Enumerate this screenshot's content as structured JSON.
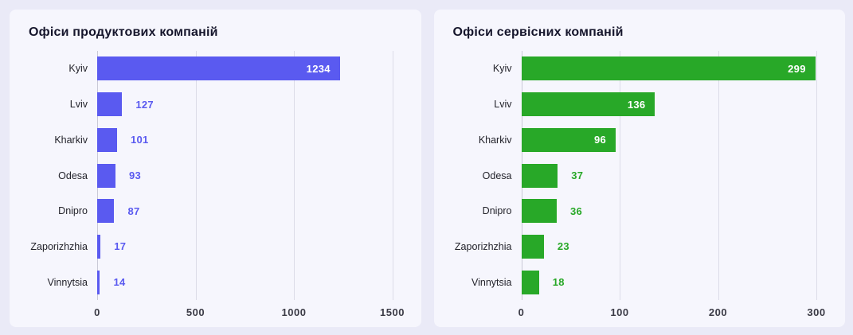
{
  "theme": {
    "page_bg": "#eaeaf7",
    "card_bg": "#f6f6fd",
    "grid_color": "#dcdce8",
    "axis_zero_color": "#c9c9d6",
    "title_color": "#15152b",
    "label_color": "#23232b",
    "tick_color": "#3b3b46"
  },
  "chart_data": [
    {
      "type": "bar",
      "orientation": "horizontal",
      "title": "Офіси продуктових компаній",
      "categories": [
        "Kyiv",
        "Lviv",
        "Kharkiv",
        "Odesa",
        "Dnipro",
        "Zaporizhzhia",
        "Vinnytsia"
      ],
      "values": [
        1234,
        127,
        101,
        93,
        87,
        17,
        14
      ],
      "value_labels": [
        "1234",
        "127",
        "101",
        "93",
        "87",
        "17",
        "14"
      ],
      "xticks": [
        "0",
        "500",
        "1000",
        "1500"
      ],
      "xtick_values": [
        0,
        500,
        1000,
        1500
      ],
      "xlim": [
        0,
        1560
      ],
      "bar_color": "#5a5af0",
      "value_label_inside_color": "#ffffff",
      "grid": "vertical-gridlines-only",
      "legend": "none"
    },
    {
      "type": "bar",
      "orientation": "horizontal",
      "title": "Офіси сервісних компаній",
      "categories": [
        "Kyiv",
        "Lviv",
        "Kharkiv",
        "Odesa",
        "Dnipro",
        "Zaporizhzhia",
        "Vinnytsia"
      ],
      "values": [
        299,
        136,
        96,
        37,
        36,
        23,
        18
      ],
      "value_labels": [
        "299",
        "136",
        "96",
        "37",
        "36",
        "23",
        "18"
      ],
      "xticks": [
        "0",
        "100",
        "200",
        "300"
      ],
      "xtick_values": [
        0,
        100,
        200,
        300
      ],
      "xlim": [
        0,
        312
      ],
      "bar_color": "#28a828",
      "value_label_inside_color": "#ffffff",
      "grid": "vertical-gridlines-only",
      "legend": "none"
    }
  ]
}
